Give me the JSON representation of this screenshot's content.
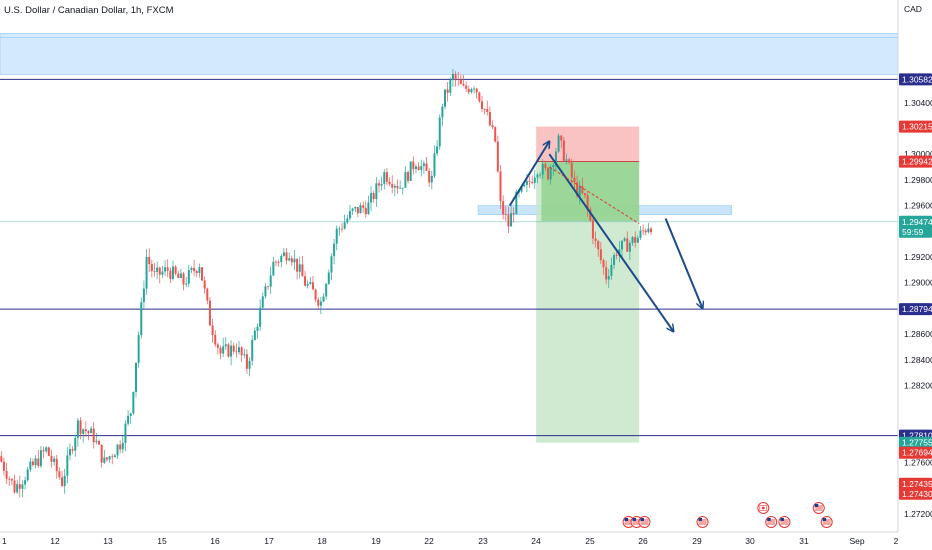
{
  "chart_data": {
    "type": "candlestick",
    "title": "U.S. Dollar / Canadian Dollar, 1h, FXCM",
    "currency_label": "CAD",
    "ylim": [
      1.2706,
      1.312
    ],
    "y_ticks": [
      "1.30400",
      "1.30000",
      "1.29800",
      "1.29600",
      "1.29200",
      "1.29000",
      "1.28600",
      "1.28400",
      "1.28200",
      "1.27800",
      "1.27600",
      "1.27200"
    ],
    "x_ticks": [
      "1",
      "12",
      "13",
      "15",
      "16",
      "17",
      "18",
      "19",
      "22",
      "23",
      "24",
      "25",
      "26",
      "29",
      "30",
      "31",
      "Sep",
      "2"
    ],
    "grid": false,
    "colors": {
      "up": "#26a69a",
      "down": "#ef5350",
      "arrow": "#1c4a8a",
      "level": "#2a2e8c",
      "zone": "#bbdefb",
      "stop": "#f8b4b4",
      "target": "#c8e6c9",
      "target_dark": "#8fd18a"
    },
    "levels": [
      {
        "value": 1.28794,
        "label": "1.28794",
        "color": "#2a2e8c"
      },
      {
        "value": 1.2781,
        "label": "1.27810",
        "color": "#2a2e8c"
      },
      {
        "value": 1.30582,
        "label": "1.30582",
        "color": "#2a2e8c"
      }
    ],
    "price_badges": [
      {
        "value": 1.30215,
        "label": "1.30215",
        "color": "#e53935"
      },
      {
        "value": 1.29942,
        "label": "1.29942",
        "color": "#e53935"
      },
      {
        "value": 1.29474,
        "label": "1.29474",
        "sublabel": "59:59",
        "color": "#26a69a"
      },
      {
        "value": 1.27755,
        "label": "1.27755",
        "color": "#26a69a"
      },
      {
        "value": 1.27694,
        "label": "1.27694",
        "color": "#e53935"
      },
      {
        "value": 1.27435,
        "label": "1.27435",
        "color": "#e53935"
      },
      {
        "value": 1.2743,
        "label": "1.27430",
        "color": "#e53935"
      }
    ],
    "zones": [
      {
        "name": "resistance-zone",
        "y1": 1.3062,
        "y2": 1.3094
      },
      {
        "name": "entry-zone",
        "y1": 1.2953,
        "y2": 1.296
      }
    ],
    "position": {
      "entry": 1.29942,
      "stop": 1.30215,
      "target": 1.27755
    },
    "path": [
      {
        "t": 0,
        "p": 1.2765
      },
      {
        "t": 6,
        "p": 1.274
      },
      {
        "t": 12,
        "p": 1.2755
      },
      {
        "t": 18,
        "p": 1.277
      },
      {
        "t": 24,
        "p": 1.2745
      },
      {
        "t": 30,
        "p": 1.279
      },
      {
        "t": 36,
        "p": 1.278
      },
      {
        "t": 40,
        "p": 1.276
      },
      {
        "t": 46,
        "p": 1.2775
      },
      {
        "t": 50,
        "p": 1.28
      },
      {
        "t": 54,
        "p": 1.288
      },
      {
        "t": 56,
        "p": 1.292
      },
      {
        "t": 59,
        "p": 1.2905
      },
      {
        "t": 64,
        "p": 1.291
      },
      {
        "t": 70,
        "p": 1.29
      },
      {
        "t": 76,
        "p": 1.2915
      },
      {
        "t": 80,
        "p": 1.287
      },
      {
        "t": 84,
        "p": 1.2845
      },
      {
        "t": 90,
        "p": 1.285
      },
      {
        "t": 94,
        "p": 1.2835
      },
      {
        "t": 98,
        "p": 1.287
      },
      {
        "t": 104,
        "p": 1.2915
      },
      {
        "t": 110,
        "p": 1.2925
      },
      {
        "t": 116,
        "p": 1.29
      },
      {
        "t": 122,
        "p": 1.2885
      },
      {
        "t": 128,
        "p": 1.294
      },
      {
        "t": 134,
        "p": 1.2955
      },
      {
        "t": 140,
        "p": 1.296
      },
      {
        "t": 146,
        "p": 1.2985
      },
      {
        "t": 152,
        "p": 1.2975
      },
      {
        "t": 158,
        "p": 1.2995
      },
      {
        "t": 164,
        "p": 1.298
      },
      {
        "t": 168,
        "p": 1.304
      },
      {
        "t": 172,
        "p": 1.306
      },
      {
        "t": 176,
        "p": 1.305
      },
      {
        "t": 180,
        "p": 1.3055
      },
      {
        "t": 184,
        "p": 1.3035
      },
      {
        "t": 188,
        "p": 1.301
      },
      {
        "t": 190,
        "p": 1.296
      },
      {
        "t": 193,
        "p": 1.2945
      },
      {
        "t": 196,
        "p": 1.2965
      },
      {
        "t": 200,
        "p": 1.2975
      },
      {
        "t": 204,
        "p": 1.299
      },
      {
        "t": 208,
        "p": 1.2985
      },
      {
        "t": 212,
        "p": 1.301
      },
      {
        "t": 215,
        "p": 1.2995
      },
      {
        "t": 218,
        "p": 1.2975
      },
      {
        "t": 222,
        "p": 1.2965
      },
      {
        "t": 226,
        "p": 1.293
      },
      {
        "t": 230,
        "p": 1.2905
      },
      {
        "t": 234,
        "p": 1.2925
      },
      {
        "t": 238,
        "p": 1.293
      },
      {
        "t": 242,
        "p": 1.2935
      },
      {
        "t": 246,
        "p": 1.2945
      }
    ],
    "arrows": [
      {
        "name": "arrow-up",
        "from": [
          193,
          1.296
        ],
        "to": [
          208,
          1.301
        ]
      },
      {
        "name": "arrow-down-1",
        "from": [
          208,
          1.3
        ],
        "to": [
          255,
          1.2862
        ]
      },
      {
        "name": "arrow-down-2",
        "from": [
          252,
          1.295
        ],
        "to": [
          266,
          1.288
        ]
      }
    ],
    "dashed_line": {
      "from": [
        208,
        1.299
      ],
      "to": [
        242,
        1.2946
      ]
    },
    "event_icons": [
      {
        "name": "us-flag-icon",
        "t": 238
      },
      {
        "name": "us-flag-icon",
        "t": 241
      },
      {
        "name": "us-flag-icon",
        "t": 244
      },
      {
        "name": "us-flag-icon",
        "t": 266
      },
      {
        "name": "ca-flag-icon",
        "t": 289
      },
      {
        "name": "us-flag-icon",
        "t": 292
      },
      {
        "name": "us-flag-icon",
        "t": 297
      },
      {
        "name": "us-flag-icon",
        "t": 310
      },
      {
        "name": "us-flag-icon",
        "t": 313
      }
    ],
    "x_span": 340
  }
}
